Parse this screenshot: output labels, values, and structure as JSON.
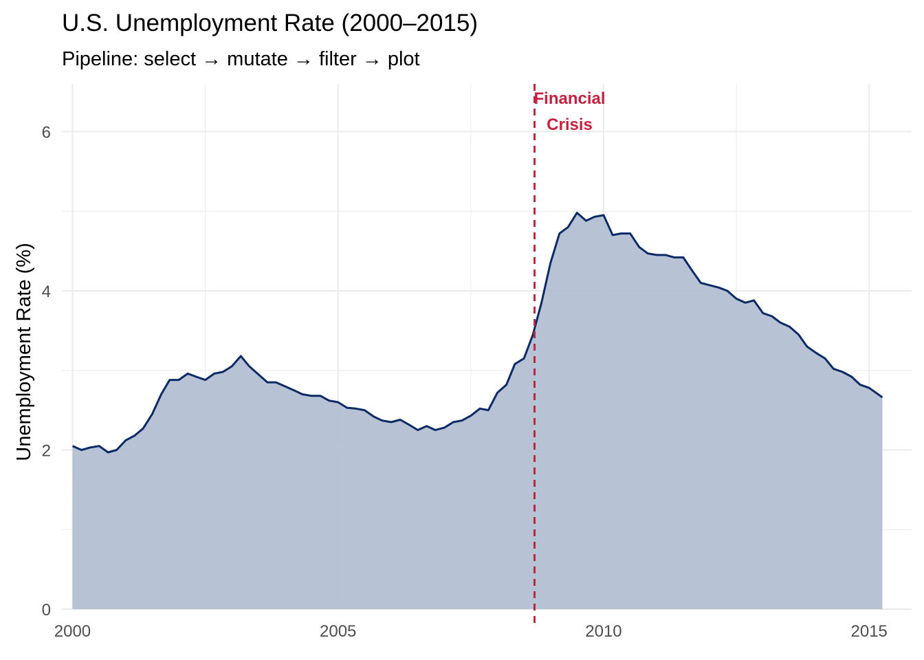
{
  "chart_data": {
    "type": "area",
    "title": "U.S. Unemployment Rate (2000–2015)",
    "subtitle": "Pipeline: select → mutate → filter → plot",
    "xlabel": "",
    "ylabel": "Unemployment Rate (%)",
    "xlim": [
      1999.8,
      2015.8
    ],
    "ylim": [
      0,
      6.6
    ],
    "x_ticks": [
      2000,
      2005,
      2010,
      2015
    ],
    "x_tick_labels": [
      "2000",
      "2005",
      "2010",
      "2015"
    ],
    "y_ticks": [
      0,
      2,
      4,
      6
    ],
    "y_tick_labels": [
      "0",
      "2",
      "4",
      "6"
    ],
    "grid": true,
    "colors": {
      "line": "#0b2a66",
      "fill": "#b3bfd3",
      "grid": "#ebebeb",
      "annotation": "#c8203f"
    },
    "series": [
      {
        "x": [
          2000.0,
          2000.17,
          2000.33,
          2000.5,
          2000.67,
          2000.83,
          2001.0,
          2001.17,
          2001.33,
          2001.5,
          2001.67,
          2001.83,
          2002.0,
          2002.17,
          2002.33,
          2002.5,
          2002.67,
          2002.83,
          2003.0,
          2003.17,
          2003.33,
          2003.5,
          2003.67,
          2003.83,
          2004.0,
          2004.17,
          2004.33,
          2004.5,
          2004.67,
          2004.83,
          2005.0,
          2005.17,
          2005.33,
          2005.5,
          2005.67,
          2005.83,
          2006.0,
          2006.17,
          2006.33,
          2006.5,
          2006.67,
          2006.83,
          2007.0,
          2007.17,
          2007.33,
          2007.5,
          2007.67,
          2007.83,
          2008.0,
          2008.17,
          2008.33,
          2008.5,
          2008.67,
          2008.83,
          2009.0,
          2009.17,
          2009.33,
          2009.5,
          2009.67,
          2009.83,
          2010.0,
          2010.17,
          2010.33,
          2010.5,
          2010.67,
          2010.83,
          2011.0,
          2011.17,
          2011.33,
          2011.5,
          2011.67,
          2011.83,
          2012.0,
          2012.17,
          2012.33,
          2012.5,
          2012.67,
          2012.83,
          2013.0,
          2013.17,
          2013.33,
          2013.5,
          2013.67,
          2013.83,
          2014.0,
          2014.17,
          2014.33,
          2014.5,
          2014.67,
          2014.83,
          2015.0,
          2015.17,
          2015.25
        ],
        "values": [
          2.05,
          2.0,
          2.03,
          2.05,
          1.97,
          2.0,
          2.12,
          2.18,
          2.27,
          2.45,
          2.7,
          2.88,
          2.88,
          2.96,
          2.92,
          2.88,
          2.96,
          2.98,
          3.05,
          3.18,
          3.05,
          2.95,
          2.85,
          2.85,
          2.8,
          2.75,
          2.7,
          2.68,
          2.68,
          2.62,
          2.6,
          2.53,
          2.52,
          2.5,
          2.42,
          2.37,
          2.35,
          2.38,
          2.32,
          2.25,
          2.3,
          2.25,
          2.28,
          2.35,
          2.37,
          2.43,
          2.52,
          2.5,
          2.72,
          2.82,
          3.08,
          3.15,
          3.45,
          3.85,
          4.35,
          4.72,
          4.8,
          4.98,
          4.88,
          4.93,
          4.95,
          4.7,
          4.72,
          4.72,
          4.55,
          4.47,
          4.45,
          4.45,
          4.42,
          4.42,
          4.25,
          4.1,
          4.07,
          4.04,
          4.0,
          3.9,
          3.85,
          3.88,
          3.72,
          3.68,
          3.6,
          3.55,
          3.45,
          3.3,
          3.22,
          3.15,
          3.02,
          2.98,
          2.92,
          2.82,
          2.78,
          2.7,
          2.66
        ]
      }
    ],
    "annotations": [
      {
        "x": 2008.7,
        "label_lines": [
          "Financial",
          "Crisis"
        ],
        "style": "dashed-vertical-line"
      }
    ]
  }
}
